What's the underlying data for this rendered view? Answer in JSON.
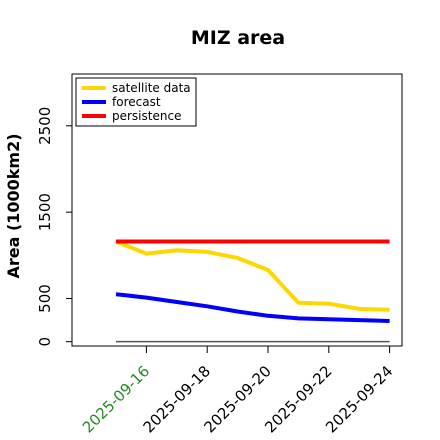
{
  "chart_data": {
    "type": "line",
    "title": "MIZ area",
    "ylabel": "Area (1000km2)",
    "xlabel": "",
    "x": [
      "2025-09-15",
      "2025-09-16",
      "2025-09-17",
      "2025-09-18",
      "2025-09-19",
      "2025-09-20",
      "2025-09-21",
      "2025-09-22",
      "2025-09-23",
      "2025-09-24"
    ],
    "x_tick_labels": [
      "2025-09-16",
      "2025-09-18",
      "2025-09-20",
      "2025-09-22",
      "2025-09-24"
    ],
    "x_tick_colors": [
      "#228B22",
      "#000000",
      "#000000",
      "#000000",
      "#000000"
    ],
    "ylim": [
      -50,
      3100
    ],
    "y_ticks": [
      0,
      500,
      1500,
      2500
    ],
    "grid": false,
    "legend_position": "top-left",
    "series": [
      {
        "name": "satellite data",
        "color": "#FFD700",
        "values": [
          1160,
          1020,
          1060,
          1040,
          970,
          830,
          450,
          440,
          380,
          370
        ]
      },
      {
        "name": "forecast",
        "color": "#0000FF",
        "values": [
          550,
          510,
          460,
          410,
          350,
          300,
          270,
          260,
          250,
          240
        ]
      },
      {
        "name": "persistence",
        "color": "#FF0000",
        "values": [
          1160,
          1160,
          1160,
          1160,
          1160,
          1160,
          1160,
          1160,
          1160,
          1160
        ]
      }
    ],
    "baseline": {
      "value": 0,
      "color": "#555555"
    }
  }
}
